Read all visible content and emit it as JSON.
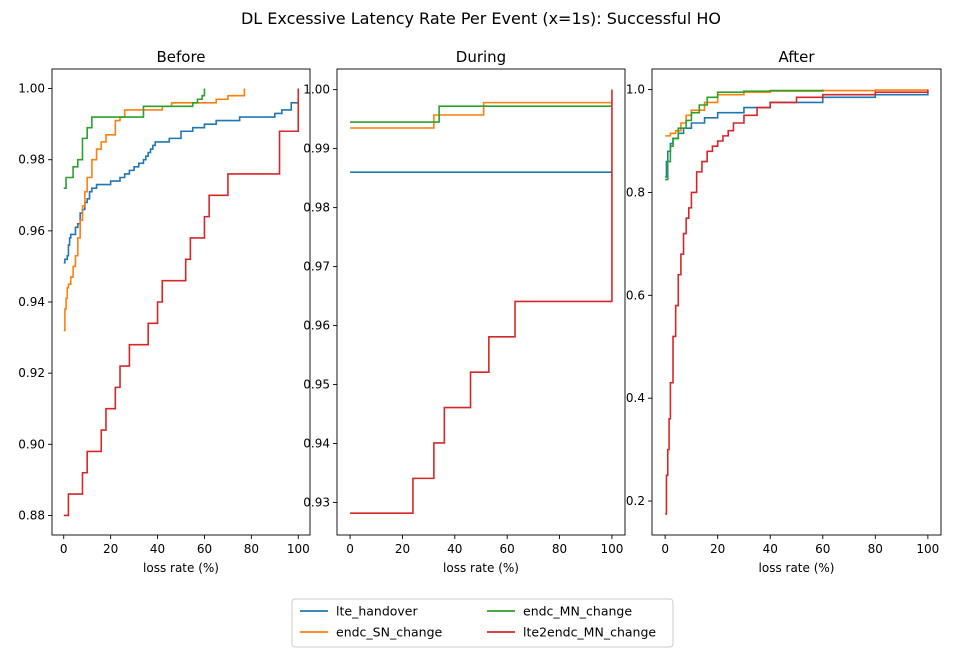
{
  "figure": {
    "suptitle": "DL Excessive Latency Rate Per Event (x=1s): Successful HO"
  },
  "legend": {
    "placement": "bottom-center",
    "columns": 2,
    "entries": [
      "lte_handover",
      "endc_SN_change",
      "endc_MN_change",
      "lte2endc_MN_change"
    ]
  },
  "colors": {
    "lte_handover": "#1f77b4",
    "endc_SN_change": "#ff7f0e",
    "endc_MN_change": "#2ca02c",
    "lte2endc_MN_change": "#d62728"
  },
  "chart_data": [
    {
      "type": "line",
      "title": "Before",
      "xlabel": "loss rate (%)",
      "ylabel": "",
      "xlim": [
        -5,
        105
      ],
      "ylim": [
        0.8745,
        1.0055
      ],
      "xticks": [
        0,
        20,
        40,
        60,
        80,
        100
      ],
      "yticks": [
        0.88,
        0.9,
        0.92,
        0.94,
        0.96,
        0.98,
        1.0
      ],
      "ytick_labels": [
        "0.88",
        "0.90",
        "0.92",
        "0.94",
        "0.96",
        "0.98",
        "1.00"
      ],
      "grid": false,
      "series": [
        {
          "name": "lte_handover",
          "x": [
            0,
            0.5,
            1,
            1.5,
            2,
            2.5,
            3,
            4,
            5,
            6,
            7,
            8,
            9,
            10,
            11,
            12,
            14,
            16,
            18,
            20,
            22,
            24,
            26,
            28,
            30,
            32,
            34,
            35,
            36,
            37,
            38,
            39,
            40,
            45,
            50,
            55,
            60,
            65,
            70,
            75,
            80,
            85,
            90,
            93,
            95,
            97,
            100
          ],
          "y": [
            0.951,
            0.952,
            0.952,
            0.953,
            0.956,
            0.958,
            0.959,
            0.959,
            0.961,
            0.962,
            0.965,
            0.966,
            0.968,
            0.969,
            0.971,
            0.972,
            0.973,
            0.973,
            0.973,
            0.974,
            0.974,
            0.975,
            0.976,
            0.977,
            0.978,
            0.979,
            0.98,
            0.981,
            0.982,
            0.983,
            0.984,
            0.985,
            0.985,
            0.986,
            0.988,
            0.989,
            0.99,
            0.991,
            0.991,
            0.992,
            0.992,
            0.992,
            0.993,
            0.994,
            0.994,
            0.996,
            0.996
          ]
        },
        {
          "name": "endc_SN_change",
          "x": [
            0,
            0.5,
            1,
            1.5,
            2,
            3,
            4,
            5,
            6,
            7,
            8,
            9,
            10,
            12,
            14,
            16,
            18,
            20,
            22,
            24,
            26,
            30,
            34,
            38,
            42,
            46,
            50,
            55,
            60,
            65,
            70,
            75,
            77
          ],
          "y": [
            0.932,
            0.938,
            0.941,
            0.944,
            0.945,
            0.947,
            0.95,
            0.953,
            0.958,
            0.963,
            0.967,
            0.971,
            0.975,
            0.98,
            0.983,
            0.985,
            0.987,
            0.987,
            0.991,
            0.992,
            0.994,
            0.994,
            0.994,
            0.994,
            0.995,
            0.996,
            0.996,
            0.996,
            0.996,
            0.997,
            0.998,
            0.998,
            1.0
          ]
        },
        {
          "name": "endc_MN_change",
          "x": [
            0,
            1,
            3,
            4,
            6,
            8,
            10,
            12,
            20,
            25,
            30,
            34,
            40,
            45,
            50,
            55,
            57,
            59,
            60
          ],
          "y": [
            0.972,
            0.975,
            0.975,
            0.978,
            0.98,
            0.986,
            0.989,
            0.992,
            0.992,
            0.992,
            0.992,
            0.995,
            0.995,
            0.995,
            0.995,
            0.996,
            0.997,
            0.998,
            1.0
          ]
        },
        {
          "name": "lte2endc_MN_change",
          "x": [
            0,
            2,
            4,
            6,
            8,
            10,
            12,
            14,
            16,
            18,
            20,
            22,
            24,
            26,
            28,
            30,
            32,
            34,
            36,
            38,
            40,
            42,
            44,
            46,
            48,
            50,
            52,
            54,
            56,
            58,
            60,
            62,
            64,
            66,
            68,
            70,
            72,
            74,
            76,
            78,
            80,
            82,
            84,
            86,
            88,
            90,
            92,
            94,
            96,
            98,
            100
          ],
          "y": [
            0.88,
            0.886,
            0.886,
            0.886,
            0.892,
            0.898,
            0.898,
            0.898,
            0.904,
            0.91,
            0.91,
            0.916,
            0.922,
            0.922,
            0.928,
            0.928,
            0.928,
            0.928,
            0.934,
            0.934,
            0.94,
            0.946,
            0.946,
            0.946,
            0.946,
            0.946,
            0.952,
            0.958,
            0.958,
            0.958,
            0.964,
            0.97,
            0.97,
            0.97,
            0.97,
            0.976,
            0.976,
            0.976,
            0.976,
            0.976,
            0.976,
            0.976,
            0.976,
            0.976,
            0.976,
            0.976,
            0.988,
            0.988,
            0.988,
            0.988,
            1.0
          ]
        }
      ]
    },
    {
      "type": "line",
      "title": "During",
      "xlabel": "loss rate (%)",
      "ylabel": "",
      "xlim": [
        -5,
        105
      ],
      "ylim": [
        0.9245,
        1.0035
      ],
      "xticks": [
        0,
        20,
        40,
        60,
        80,
        100
      ],
      "yticks": [
        0.93,
        0.94,
        0.95,
        0.96,
        0.97,
        0.98,
        0.99,
        1.0
      ],
      "ytick_labels": [
        "0.93",
        "0.94",
        "0.95",
        "0.96",
        "0.97",
        "0.98",
        "0.99",
        "1.00"
      ],
      "grid": false,
      "series": [
        {
          "name": "lte_handover",
          "x": [
            0,
            100
          ],
          "y": [
            0.986,
            0.986
          ]
        },
        {
          "name": "endc_SN_change",
          "x": [
            0,
            32,
            51,
            100
          ],
          "y": [
            0.9935,
            0.9957,
            0.9978,
            0.9978
          ]
        },
        {
          "name": "endc_MN_change",
          "x": [
            0,
            34,
            100
          ],
          "y": [
            0.9945,
            0.9972,
            0.9972
          ]
        },
        {
          "name": "lte2endc_MN_change",
          "x": [
            0,
            24,
            32,
            36,
            46,
            53,
            63,
            100,
            100
          ],
          "y": [
            0.9282,
            0.9341,
            0.9401,
            0.9461,
            0.9521,
            0.9581,
            0.9641,
            0.9641,
            1.0
          ]
        }
      ]
    },
    {
      "type": "line",
      "title": "After",
      "xlabel": "loss rate (%)",
      "ylabel": "",
      "xlim": [
        -5,
        105
      ],
      "ylim": [
        0.134,
        1.04
      ],
      "xticks": [
        0,
        20,
        40,
        60,
        80,
        100
      ],
      "yticks": [
        0.2,
        0.4,
        0.6,
        0.8,
        1.0
      ],
      "ytick_labels": [
        "0.2",
        "0.4",
        "0.6",
        "0.8",
        "1.0"
      ],
      "grid": false,
      "series": [
        {
          "name": "lte_handover",
          "x": [
            0,
            0.5,
            1,
            2,
            3,
            5,
            7,
            10,
            15,
            20,
            30,
            40,
            60,
            80,
            100
          ],
          "y": [
            0.83,
            0.86,
            0.88,
            0.895,
            0.905,
            0.915,
            0.925,
            0.935,
            0.945,
            0.955,
            0.965,
            0.975,
            0.985,
            0.99,
            0.995
          ]
        },
        {
          "name": "endc_SN_change",
          "x": [
            0,
            2,
            4,
            6,
            8,
            10,
            15,
            20,
            30,
            40,
            60,
            80,
            100
          ],
          "y": [
            0.91,
            0.915,
            0.92,
            0.935,
            0.95,
            0.96,
            0.975,
            0.99,
            0.995,
            0.997,
            0.998,
            0.999,
            1.0
          ]
        },
        {
          "name": "endc_MN_change",
          "x": [
            0,
            1,
            2,
            3,
            5,
            8,
            10,
            13,
            16,
            20,
            30,
            40,
            60
          ],
          "y": [
            0.825,
            0.86,
            0.89,
            0.905,
            0.925,
            0.94,
            0.955,
            0.97,
            0.985,
            0.995,
            0.997,
            0.998,
            1.0
          ]
        },
        {
          "name": "lte2endc_MN_change",
          "x": [
            0,
            0.5,
            1,
            1.5,
            2,
            3,
            4,
            5,
            6,
            7,
            8,
            9,
            10,
            12,
            14,
            16,
            18,
            20,
            22,
            24,
            26,
            30,
            35,
            40,
            50,
            60,
            80,
            100
          ],
          "y": [
            0.175,
            0.25,
            0.3,
            0.36,
            0.43,
            0.52,
            0.58,
            0.64,
            0.68,
            0.72,
            0.75,
            0.77,
            0.8,
            0.84,
            0.86,
            0.88,
            0.89,
            0.9,
            0.91,
            0.92,
            0.935,
            0.95,
            0.965,
            0.975,
            0.985,
            0.99,
            0.995,
            1.0
          ]
        }
      ]
    }
  ]
}
